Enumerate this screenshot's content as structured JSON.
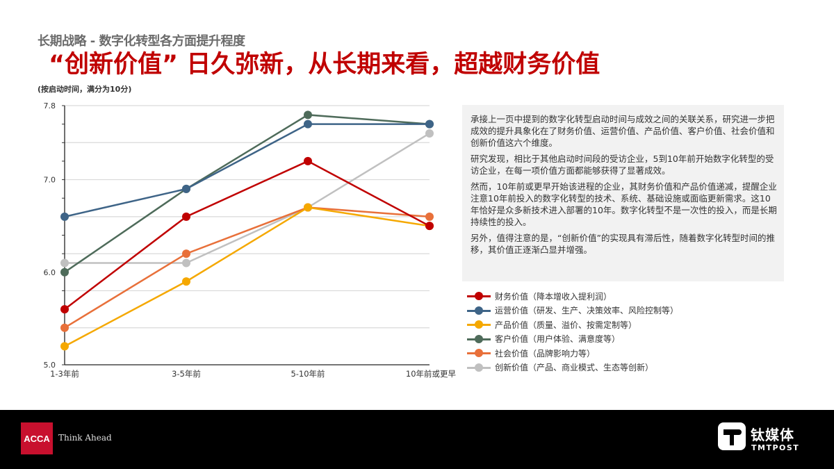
{
  "header": {
    "subtitle": "长期战略 - 数字化转型各方面提升程度",
    "headline": "“创新价值” 日久弥新，从长期来看，超越财务价值",
    "unit_note": "(按启动时间，满分为10分)"
  },
  "chart_data": {
    "type": "line",
    "title": "长期战略 - 数字化转型各方面提升程度",
    "subtitle": "(按启动时间，满分为10分)",
    "xlabel": "",
    "ylabel": "",
    "categories": [
      "1-3年前",
      "3-5年前",
      "5-10年前",
      "10年前或更早"
    ],
    "ylim": [
      5.0,
      7.8
    ],
    "ytick_labels": [
      "5.0",
      "6.0",
      "7.0",
      "7.8"
    ],
    "grid": true,
    "legend_position": "right",
    "series": [
      {
        "name": "财务价值（降本增收入提利润）",
        "color": "#c00000",
        "values": [
          5.6,
          6.6,
          7.2,
          6.5
        ]
      },
      {
        "name": "运营价值（研发、生产、决策效率、风险控制等）",
        "color": "#3e6487",
        "values": [
          6.6,
          6.9,
          7.6,
          7.6
        ]
      },
      {
        "name": "产品价值（质量、溢价、按需定制等）",
        "color": "#f5a800",
        "values": [
          5.2,
          5.9,
          6.7,
          6.5
        ]
      },
      {
        "name": "客户价值（用户体验、满意度等）",
        "color": "#4e6b5a",
        "values": [
          6.0,
          6.9,
          7.7,
          7.6
        ]
      },
      {
        "name": "社会价值（品牌影响力等）",
        "color": "#e8703a",
        "values": [
          5.4,
          6.2,
          6.7,
          6.6
        ]
      },
      {
        "name": "创新价值（产品、商业模式、生态等创新）",
        "color": "#c0c0c0",
        "values": [
          6.1,
          6.1,
          6.7,
          7.5
        ]
      }
    ]
  },
  "textbox": {
    "paragraphs": [
      "承接上一页中提到的数字化转型启动时间与成效之间的关联关系，研究进一步把成效的提升具象化在了财务价值、运营价值、产品价值、客户价值、社会价值和创新价值这六个维度。",
      "研究发现，相比于其他启动时间段的受访企业，5到10年前开始数字化转型的受访企业，在每一项价值方面都能够获得了显著成效。",
      "然而，10年前或更早开始该进程的企业，其财务价值和产品价值递减，提醒企业注意10年前投入的数字化转型的技术、系统、基础设施或面临更新需求。这10年恰好是众多新技术进入部署的10年。数字化转型不是一次性的投入，而是长期持续性的投入。",
      "另外，值得注意的是，“创新价值”的实现具有滞后性，随着数字化转型时间的推移，其价值正逐渐凸显并增强。"
    ]
  },
  "footer": {
    "acca_logo": "ACCA",
    "acca_tagline": "Think Ahead",
    "tmt_cn": "钛媒体",
    "tmt_en": "TMTPOST"
  }
}
